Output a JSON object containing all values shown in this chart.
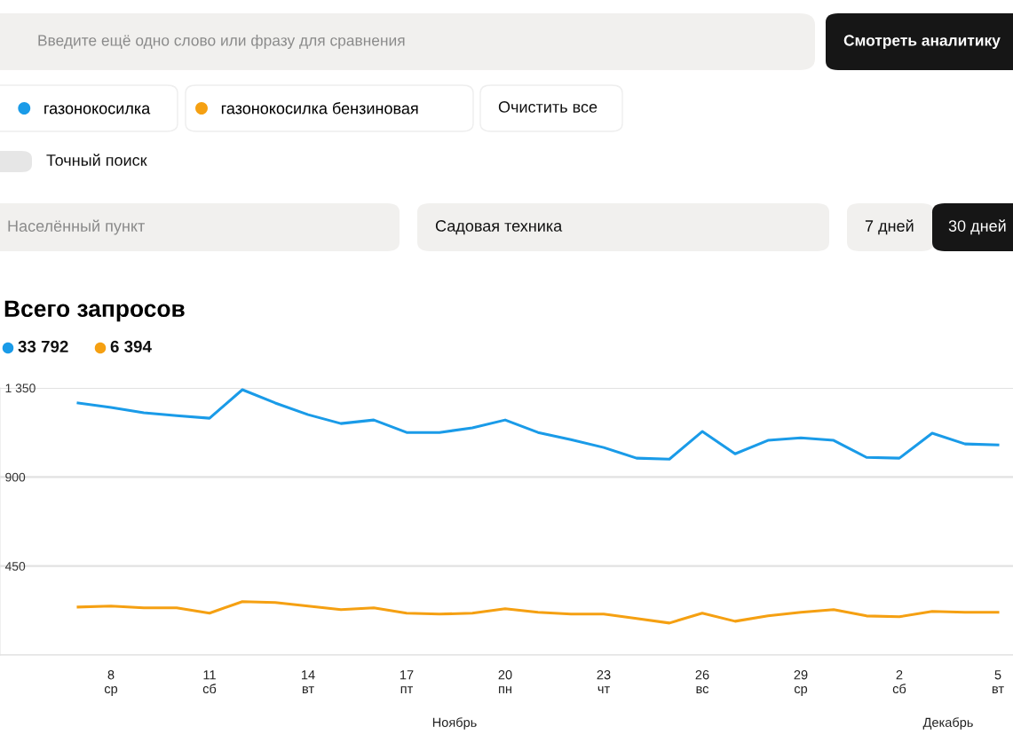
{
  "chart_data": {
    "type": "line",
    "title": "Всего запросов",
    "categories": [
      null,
      "8\nср",
      null,
      null,
      "11\nсб",
      null,
      null,
      "14\nвт",
      null,
      null,
      "17\nпт",
      null,
      null,
      "20\nпн",
      null,
      null,
      "23\nчт",
      null,
      null,
      "26\nвс",
      null,
      null,
      "29\nср",
      null,
      null,
      "2\nсб",
      null,
      null,
      "5\nвт"
    ],
    "series": [
      {
        "name": "газонокосилка",
        "color": "#1a9be8",
        "values": [
          1274,
          1251,
          1224,
          1210,
          1197,
          1341,
          1274,
          1215,
          1170,
          1188,
          1125,
          1125,
          1148,
          1188,
          1125,
          1089,
          1049,
          995,
          990,
          1130,
          1017,
          1085,
          1098,
          1085,
          999,
          995,
          1121,
          1067,
          1062
        ]
      },
      {
        "name": "газонокосилка бензиновая",
        "color": "#f5a012",
        "values": [
          243,
          248,
          239,
          239,
          212,
          270,
          266,
          248,
          230,
          239,
          212,
          207,
          212,
          234,
          216,
          207,
          207,
          185,
          162,
          212,
          171,
          198,
          216,
          230,
          198,
          194,
          221,
          216,
          216
        ]
      }
    ],
    "ylim": [
      0,
      1350
    ],
    "yticks": [
      {
        "value": 0,
        "label": null
      },
      450,
      900,
      {
        "value": 1350,
        "label": "1 350"
      }
    ],
    "grid": "y",
    "legend": "top left",
    "marker": "none",
    "line_style": "solid",
    "annotations": [
      "Введите ещё одно слово или фразу для сравнения",
      "Смотреть аналитику",
      "Очистить все",
      "Точный поиск",
      "Населённый пункт",
      "Садовая техника",
      "7 дней",
      "30 дней",
      "33 792",
      "6 394",
      "Ноябрь",
      "Декабрь"
    ]
  }
}
